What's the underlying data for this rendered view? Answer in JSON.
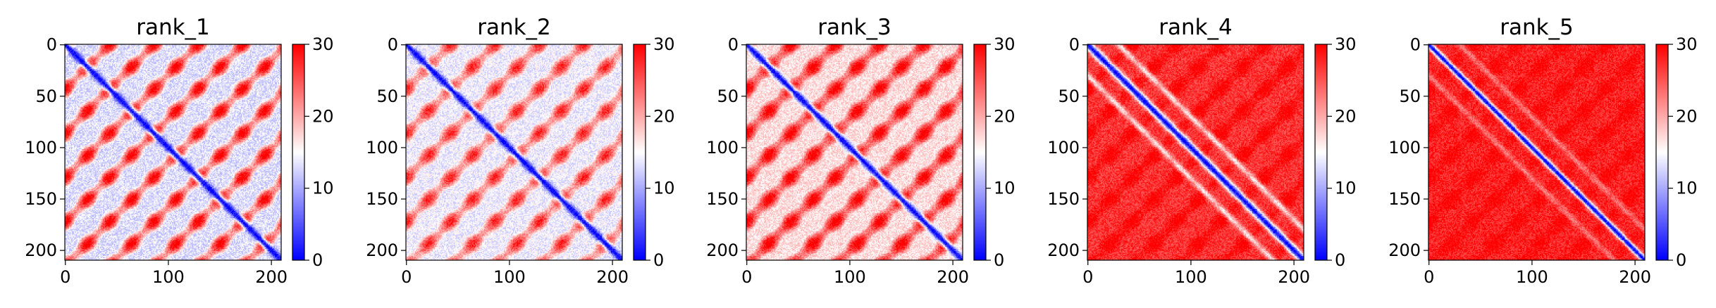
{
  "chart_data": [
    {
      "type": "heatmap",
      "title": "rank_1",
      "size": 210,
      "xticks": [
        0,
        100,
        200
      ],
      "yticks": [
        0,
        50,
        100,
        150,
        200
      ],
      "colorbar": {
        "range": [
          0,
          30
        ],
        "ticks": [
          0,
          10,
          20,
          30
        ],
        "colormap": "bwr"
      },
      "pattern": {
        "diagonal_value": 0,
        "background_value": 13,
        "spot_value": 27,
        "period": 43,
        "diag_width": 3.5,
        "band_value": null
      }
    },
    {
      "type": "heatmap",
      "title": "rank_2",
      "size": 210,
      "xticks": [
        0,
        100,
        200
      ],
      "yticks": [
        0,
        50,
        100,
        150,
        200
      ],
      "colorbar": {
        "range": [
          0,
          30
        ],
        "ticks": [
          0,
          10,
          20,
          30
        ],
        "colormap": "bwr"
      },
      "pattern": {
        "diagonal_value": 0,
        "background_value": 14,
        "spot_value": 25,
        "period": 43,
        "diag_width": 3.5,
        "band_value": null
      }
    },
    {
      "type": "heatmap",
      "title": "rank_3",
      "size": 210,
      "xticks": [
        0,
        100,
        200
      ],
      "yticks": [
        0,
        50,
        100,
        150,
        200
      ],
      "colorbar": {
        "range": [
          0,
          30
        ],
        "ticks": [
          0,
          10,
          20,
          30
        ],
        "colormap": "bwr"
      },
      "pattern": {
        "diagonal_value": 0,
        "background_value": 17,
        "spot_value": 28,
        "period": 43,
        "diag_width": 3.5,
        "band_value": null
      }
    },
    {
      "type": "heatmap",
      "title": "rank_4",
      "size": 210,
      "xticks": [
        0,
        100,
        200
      ],
      "yticks": [
        0,
        50,
        100,
        150,
        200
      ],
      "colorbar": {
        "range": [
          0,
          30
        ],
        "ticks": [
          0,
          10,
          20,
          30
        ],
        "colormap": "bwr"
      },
      "pattern": {
        "diagonal_value": 0,
        "background_value": 27,
        "spot_value": 30,
        "period": 43,
        "diag_width": 4,
        "band_value": 11
      }
    },
    {
      "type": "heatmap",
      "title": "rank_5",
      "size": 210,
      "xticks": [
        0,
        100,
        200
      ],
      "yticks": [
        0,
        50,
        100,
        150,
        200
      ],
      "colorbar": {
        "range": [
          0,
          30
        ],
        "ticks": [
          0,
          10,
          20,
          30
        ],
        "colormap": "bwr"
      },
      "pattern": {
        "diagonal_value": 0,
        "background_value": 28,
        "spot_value": 30,
        "period": 43,
        "diag_width": 3,
        "band_value": 20
      }
    }
  ]
}
